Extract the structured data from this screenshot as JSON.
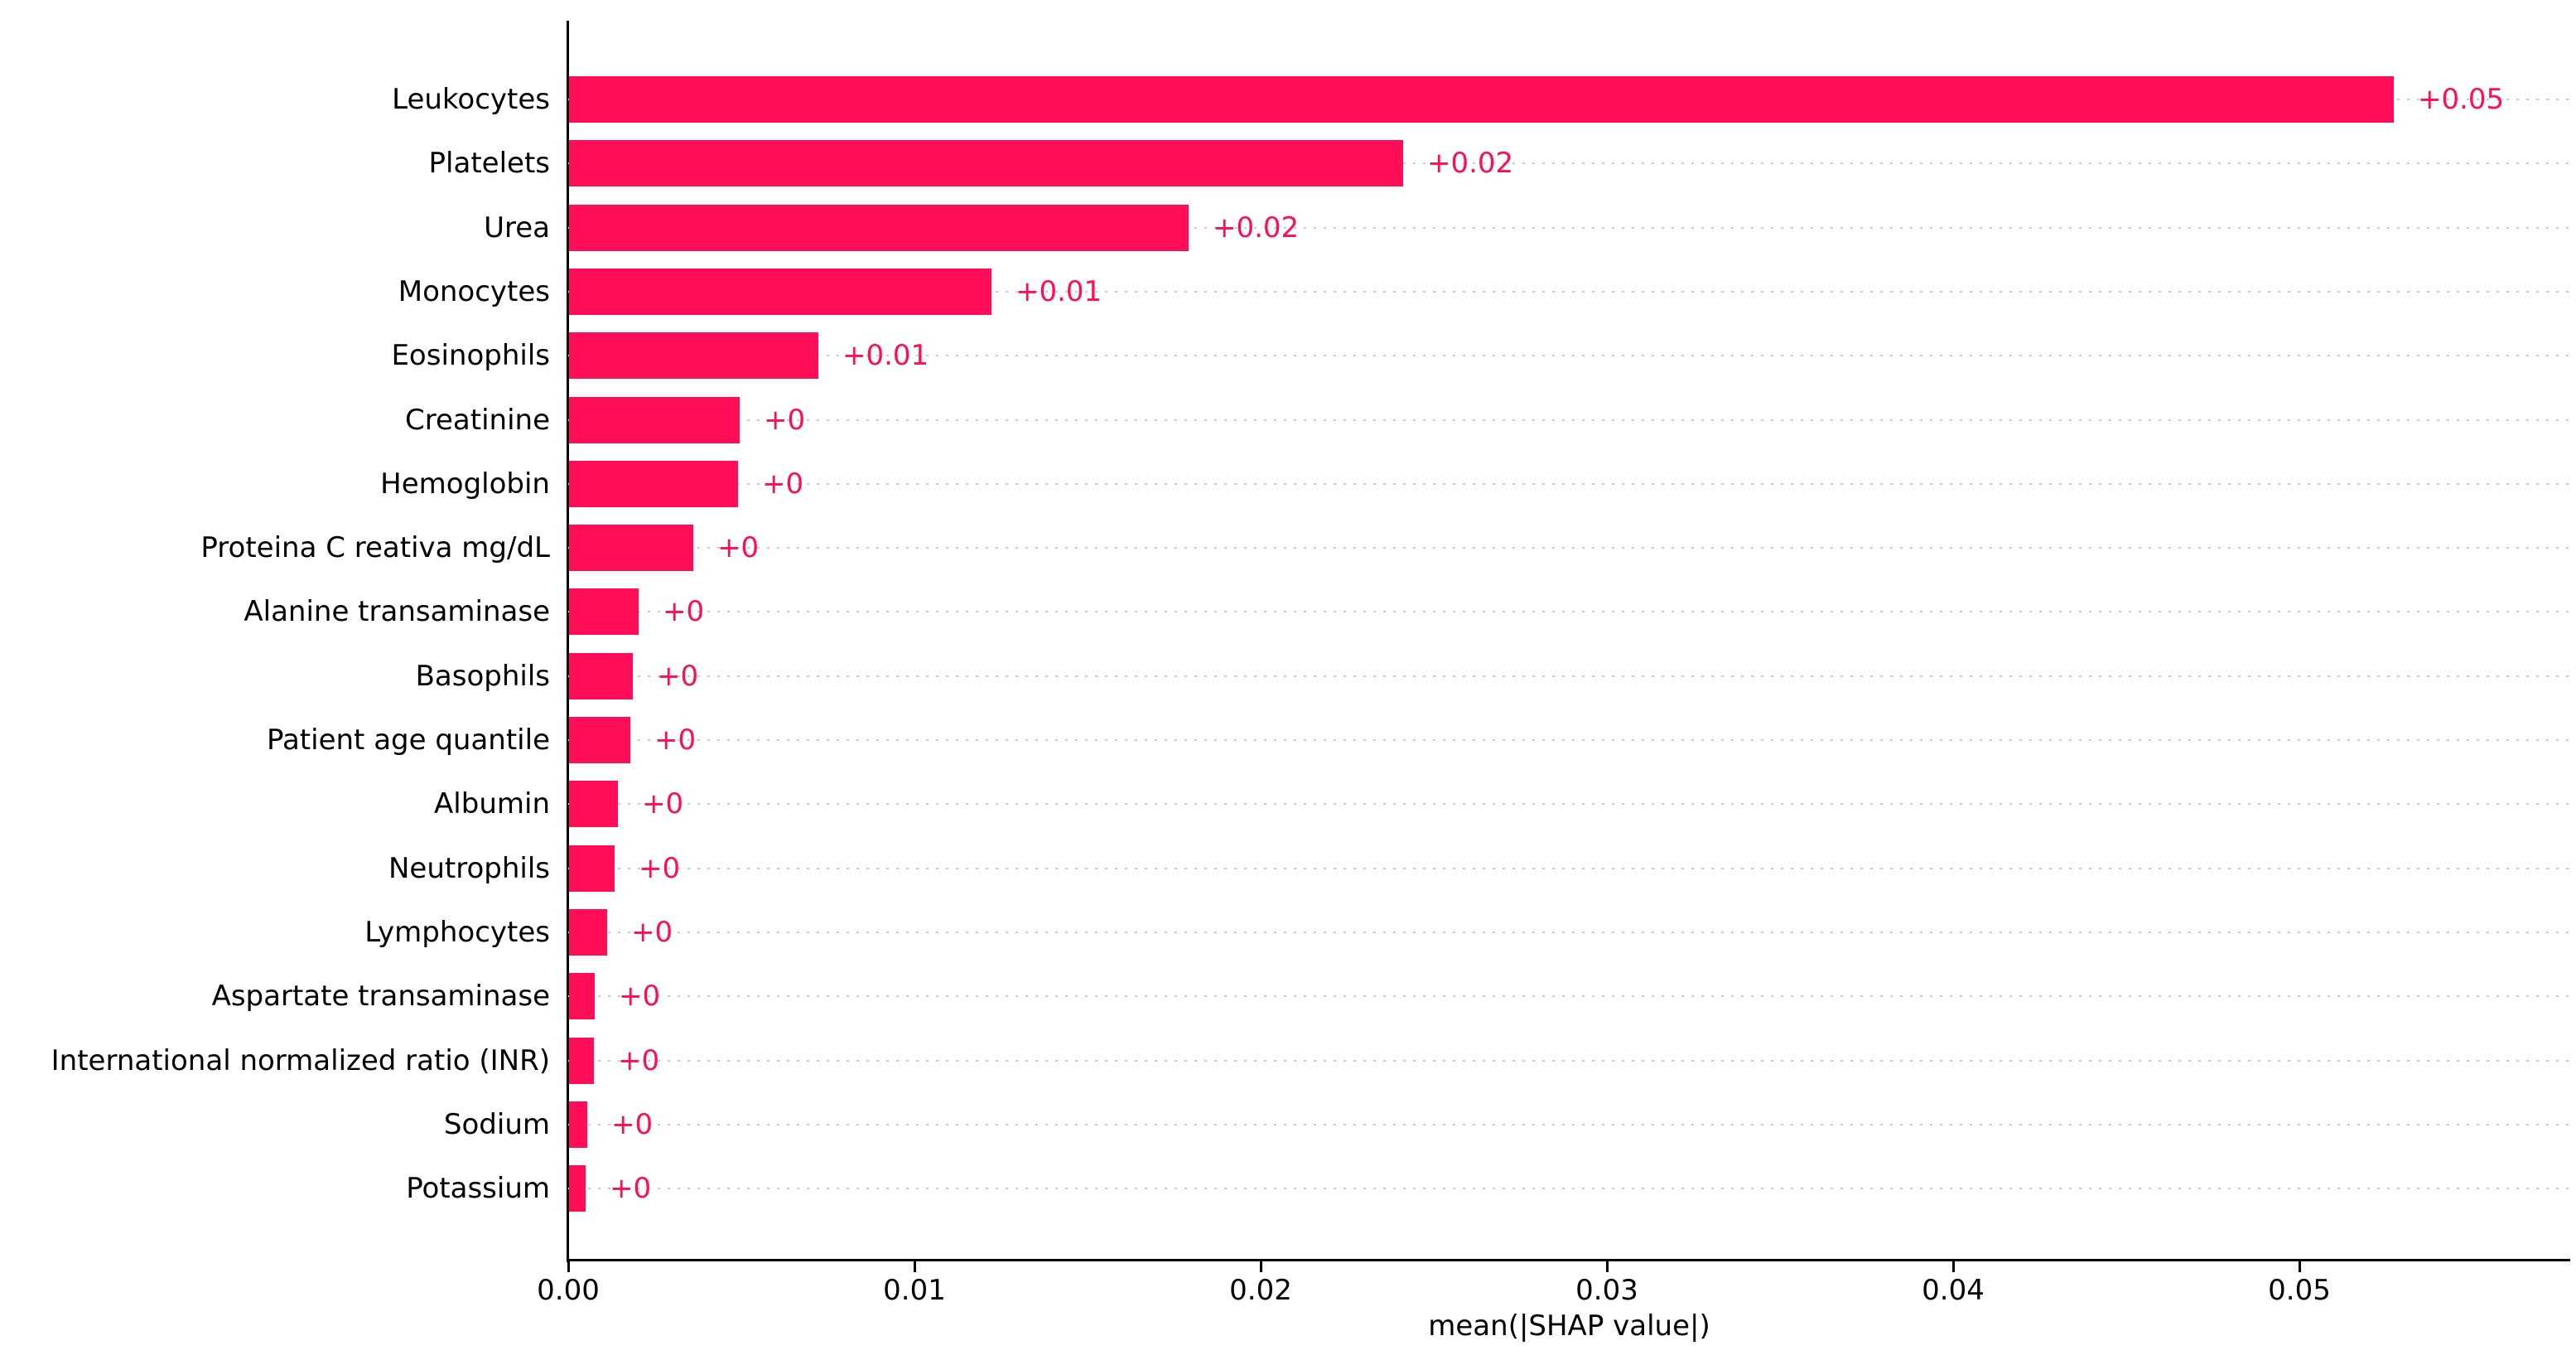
{
  "chart_data": {
    "type": "bar",
    "orientation": "horizontal",
    "title": "",
    "xlabel": "mean(|SHAP value|)",
    "ylabel": "",
    "categories": [
      "Leukocytes",
      "Platelets",
      "Urea",
      "Monocytes",
      "Eosinophils",
      "Creatinine",
      "Hemoglobin",
      "Proteina C reativa mg/dL",
      "Alanine transaminase",
      "Basophils",
      "Patient age quantile",
      "Albumin",
      "Neutrophils",
      "Lymphocytes",
      "Aspartate transaminase",
      "International normalized ratio (INR)",
      "Sodium",
      "Potassium"
    ],
    "values": [
      0.0527,
      0.0241,
      0.0179,
      0.0122,
      0.0072,
      0.00492,
      0.00488,
      0.0036,
      0.00201,
      0.00185,
      0.00177,
      0.00141,
      0.00131,
      0.0011,
      0.00074,
      0.00072,
      0.00053,
      0.00048
    ],
    "bar_labels": [
      "+0.05",
      "+0.02",
      "+0.02",
      "+0.01",
      "+0.01",
      "+0",
      "+0",
      "+0",
      "+0",
      "+0",
      "+0",
      "+0",
      "+0",
      "+0",
      "+0",
      "+0",
      "+0",
      "+0"
    ],
    "x_ticks": [
      0,
      0.01,
      0.02,
      0.03,
      0.04,
      0.05
    ],
    "x_tick_labels": [
      "0.00",
      "0.01",
      "0.02",
      "0.03",
      "0.04",
      "0.05"
    ],
    "xlim": [
      0,
      0.0578
    ],
    "grid": "horizontal dotted row lines",
    "legend_position": "none"
  },
  "colors": {
    "bar": "#ff0d57",
    "bar_value_label": "#ff0d57",
    "grid_line": "#cccccc",
    "axis_line": "#000000",
    "text": "#000000",
    "background": "#ffffff"
  }
}
